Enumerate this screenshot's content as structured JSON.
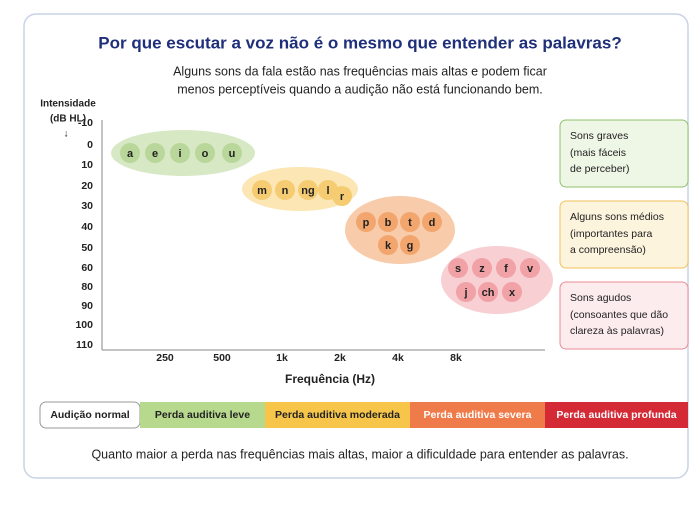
{
  "header": {
    "title": "Por que escutar a voz não é o mesmo que entender as palavras?",
    "subtitle_lines": [
      "Alguns sons da fala estão nas frequências mais altas e podem ficar",
      "menos perceptíveis quando a audição não está funcionando bem."
    ]
  },
  "y_axis": {
    "label_lines": [
      "Intensidade",
      "(dB HL)"
    ],
    "arrow": "↓",
    "ticks": [
      -10,
      0,
      10,
      20,
      30,
      40,
      50,
      60,
      80,
      90,
      100,
      110
    ]
  },
  "x_axis": {
    "label": "Frequência (Hz)",
    "ticks": [
      "250",
      "500",
      "1k",
      "2k",
      "4k",
      "8k"
    ]
  },
  "groups": [
    {
      "sounds": [
        "a",
        "e",
        "i",
        "o",
        "u"
      ]
    },
    {
      "sounds": [
        "m",
        "n",
        "ng",
        "l",
        "r"
      ]
    },
    {
      "sounds": [
        "p",
        "b",
        "t",
        "d",
        "k",
        "g"
      ]
    },
    {
      "sounds": [
        "s",
        "z",
        "f",
        "v",
        "j",
        "ch",
        "x"
      ]
    }
  ],
  "legend": [
    {
      "title": "Sons graves",
      "lines": [
        "(mais fáceis",
        "de perceber)"
      ]
    },
    {
      "title": "Alguns sons médios",
      "lines": [
        "(importantes para",
        "a compreensão)"
      ]
    },
    {
      "title": "Sons agudos",
      "lines": [
        "(consoantes que dão",
        "clareza às palavras)"
      ]
    }
  ],
  "scale": [
    "Audição normal",
    "Perda auditiva leve",
    "Perda auditiva moderada",
    "Perda auditiva severa",
    "Perda auditiva profunda"
  ],
  "footer": "Quanto maior a perda nas frequências mais altas, maior a dificuldade para entender as palavras."
}
